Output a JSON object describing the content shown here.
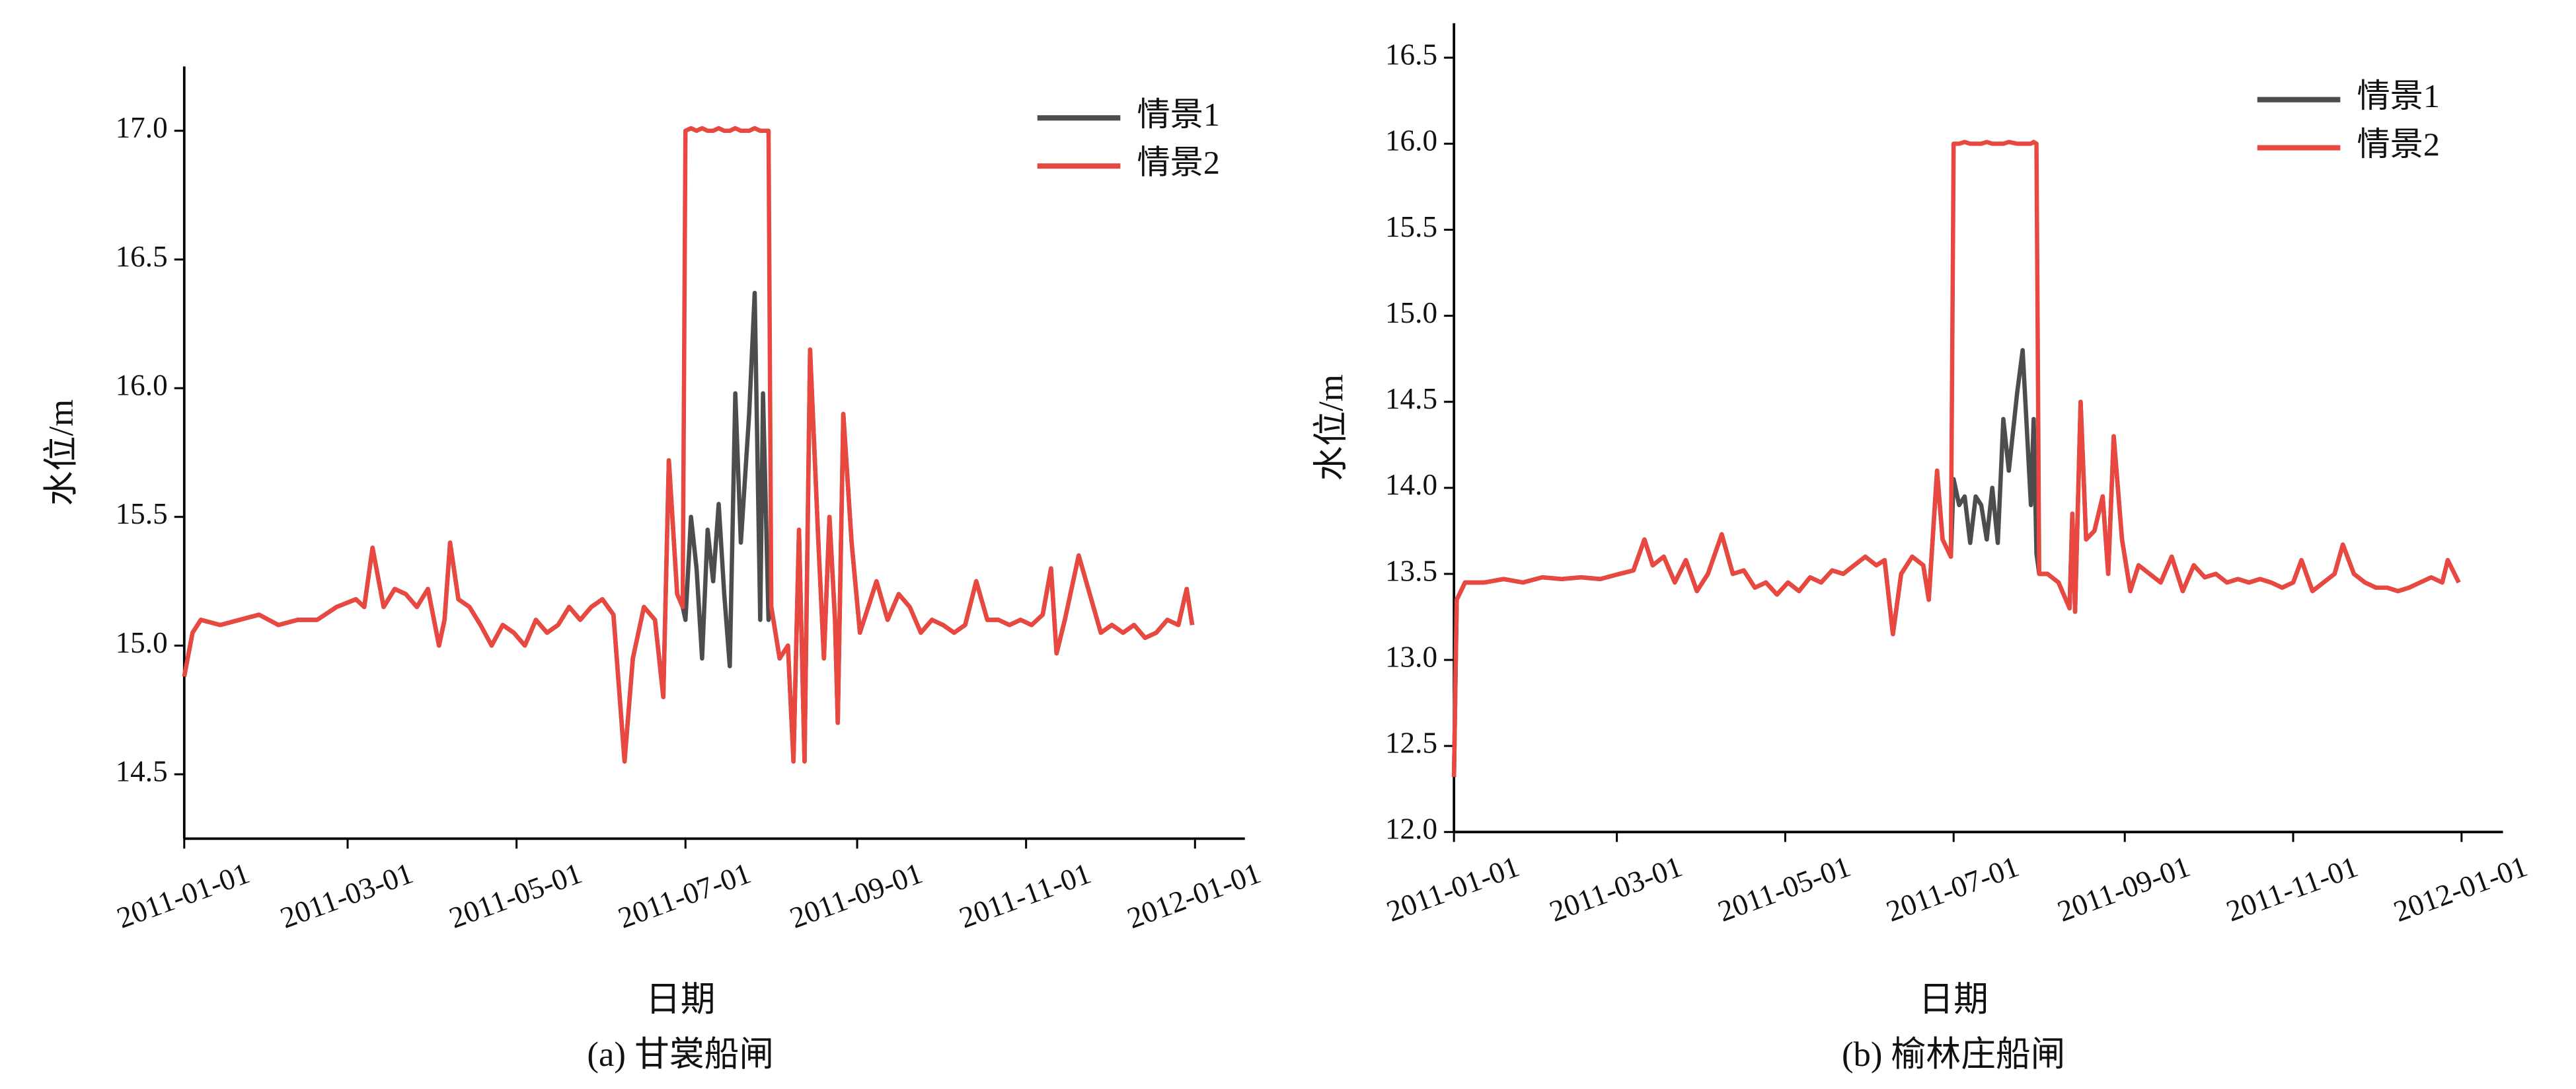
{
  "chart_data": [
    {
      "type": "line",
      "title": "(a) 甘裳船闸",
      "x_label": "日期",
      "y_label": "水位/m",
      "legend": "upper right",
      "xlim": [
        "2011-01-01",
        "2012-01-19"
      ],
      "xticks": [
        "2011-01-01",
        "2011-03-01",
        "2011-05-01",
        "2011-07-01",
        "2011-09-01",
        "2011-11-01",
        "2012-01-01"
      ],
      "ylim": [
        14.25,
        17.25
      ],
      "yticks": [
        14.5,
        {
          "value": 15,
          "label": "15.0"
        },
        15.5,
        {
          "value": 16,
          "label": "16.0"
        },
        16.5,
        {
          "value": 17,
          "label": "17.0"
        }
      ],
      "x": [
        "2011-01-01",
        "2011-01-04",
        "2011-01-07",
        "2011-01-14",
        "2011-01-21",
        "2011-01-28",
        "2011-02-04",
        "2011-02-11",
        "2011-02-18",
        "2011-02-25",
        "2011-03-04",
        "2011-03-07",
        "2011-03-10",
        "2011-03-14",
        "2011-03-18",
        "2011-03-22",
        "2011-03-26",
        "2011-03-30",
        "2011-04-03",
        "2011-04-05",
        "2011-04-07",
        "2011-04-10",
        "2011-04-14",
        "2011-04-18",
        "2011-04-22",
        "2011-04-26",
        "2011-04-30",
        "2011-05-04",
        "2011-05-08",
        "2011-05-12",
        "2011-05-16",
        "2011-05-20",
        "2011-05-24",
        "2011-05-28",
        "2011-06-01",
        "2011-06-05",
        "2011-06-09",
        "2011-06-12",
        "2011-06-16",
        "2011-06-20",
        "2011-06-23",
        "2011-06-25",
        "2011-06-28",
        "2011-06-30",
        "2011-07-01",
        "2011-07-03",
        "2011-07-05",
        "2011-07-07",
        "2011-07-09",
        "2011-07-11",
        "2011-07-13",
        "2011-07-15",
        "2011-07-17",
        "2011-07-19",
        "2011-07-21",
        "2011-07-24",
        "2011-07-26",
        "2011-07-28",
        "2011-07-29",
        "2011-07-31",
        "2011-08-01",
        "2011-08-04",
        "2011-08-07",
        "2011-08-09",
        "2011-08-11",
        "2011-08-13",
        "2011-08-15",
        "2011-08-18",
        "2011-08-20",
        "2011-08-22",
        "2011-08-24",
        "2011-08-25",
        "2011-08-27",
        "2011-08-30",
        "2011-09-02",
        "2011-09-05",
        "2011-09-08",
        "2011-09-12",
        "2011-09-16",
        "2011-09-20",
        "2011-09-24",
        "2011-09-28",
        "2011-10-02",
        "2011-10-06",
        "2011-10-10",
        "2011-10-14",
        "2011-10-18",
        "2011-10-22",
        "2011-10-26",
        "2011-10-30",
        "2011-11-03",
        "2011-11-07",
        "2011-11-10",
        "2011-11-12",
        "2011-11-15",
        "2011-11-20",
        "2011-11-24",
        "2011-11-28",
        "2011-12-02",
        "2011-12-06",
        "2011-12-10",
        "2011-12-14",
        "2011-12-18",
        "2011-12-22",
        "2011-12-26",
        "2011-12-29",
        "2011-12-31"
      ],
      "series": [
        {
          "name": "情景1",
          "color": "#4d4d4d",
          "values": [
            14.88,
            15.05,
            15.1,
            15.08,
            15.1,
            15.12,
            15.08,
            15.1,
            15.1,
            15.15,
            15.18,
            15.15,
            15.38,
            15.15,
            15.22,
            15.2,
            15.15,
            15.22,
            15,
            15.1,
            15.4,
            15.18,
            15.15,
            15.08,
            15,
            15.08,
            15.05,
            15,
            15.1,
            15.05,
            15.08,
            15.15,
            15.1,
            15.15,
            15.18,
            15.12,
            14.55,
            14.95,
            15.15,
            15.1,
            14.8,
            15.72,
            15.2,
            15.15,
            15.1,
            15.5,
            15.3,
            14.95,
            15.45,
            15.25,
            15.55,
            15.2,
            14.92,
            15.98,
            15.4,
            15.9,
            16.37,
            15.1,
            15.98,
            15.1,
            15.15,
            14.95,
            15,
            14.55,
            15.45,
            14.55,
            16.15,
            15.4,
            14.95,
            15.5,
            15.1,
            14.7,
            15.9,
            15.4,
            15.05,
            15.15,
            15.25,
            15.1,
            15.2,
            15.15,
            15.05,
            15.1,
            15.08,
            15.05,
            15.08,
            15.25,
            15.1,
            15.1,
            15.08,
            15.1,
            15.08,
            15.12,
            15.3,
            14.97,
            15.1,
            15.35,
            15.2,
            15.05,
            15.08,
            15.05,
            15.08,
            15.03,
            15.05,
            15.1,
            15.08,
            15.22,
            15.08
          ]
        },
        {
          "name": "情景2",
          "color": "#e8483f",
          "values": [
            14.88,
            15.05,
            15.1,
            15.08,
            15.1,
            15.12,
            15.08,
            15.1,
            15.1,
            15.15,
            15.18,
            15.15,
            15.38,
            15.15,
            15.22,
            15.2,
            15.15,
            15.22,
            15,
            15.1,
            15.4,
            15.18,
            15.15,
            15.08,
            15,
            15.08,
            15.05,
            15,
            15.1,
            15.05,
            15.08,
            15.15,
            15.1,
            15.15,
            15.18,
            15.12,
            14.55,
            14.95,
            15.15,
            15.1,
            14.8,
            15.72,
            15.2,
            15.15,
            17,
            17.01,
            17,
            17.01,
            17,
            17,
            17.01,
            17,
            17,
            17.01,
            17,
            17,
            17.01,
            17,
            17,
            17,
            15.15,
            14.95,
            15,
            14.55,
            15.45,
            14.55,
            16.15,
            15.4,
            14.95,
            15.5,
            15.1,
            14.7,
            15.9,
            15.4,
            15.05,
            15.15,
            15.25,
            15.1,
            15.2,
            15.15,
            15.05,
            15.1,
            15.08,
            15.05,
            15.08,
            15.25,
            15.1,
            15.1,
            15.08,
            15.1,
            15.08,
            15.12,
            15.3,
            14.97,
            15.1,
            15.35,
            15.2,
            15.05,
            15.08,
            15.05,
            15.08,
            15.03,
            15.05,
            15.1,
            15.08,
            15.22,
            15.08
          ]
        }
      ]
    },
    {
      "type": "line",
      "title": "(b) 榆林庄船闸",
      "x_label": "日期",
      "y_label": "水位/m",
      "legend": "upper right",
      "xlim": [
        "2011-01-01",
        "2012-01-16"
      ],
      "xticks": [
        "2011-01-01",
        "2011-03-01",
        "2011-05-01",
        "2011-07-01",
        "2011-09-01",
        "2011-11-01",
        "2012-01-01"
      ],
      "ylim": [
        12,
        16.7
      ],
      "yticks": [
        {
          "value": 12,
          "label": "12.0"
        },
        12.5,
        {
          "value": 13,
          "label": "13.0"
        },
        13.5,
        {
          "value": 14,
          "label": "14.0"
        },
        14.5,
        {
          "value": 15,
          "label": "15.0"
        },
        15.5,
        {
          "value": 16,
          "label": "16.0"
        },
        16.5
      ],
      "x": [
        "2011-01-01",
        "2011-01-02",
        "2011-01-05",
        "2011-01-12",
        "2011-01-19",
        "2011-01-26",
        "2011-02-02",
        "2011-02-09",
        "2011-02-16",
        "2011-02-23",
        "2011-03-02",
        "2011-03-07",
        "2011-03-11",
        "2011-03-14",
        "2011-03-18",
        "2011-03-22",
        "2011-03-26",
        "2011-03-30",
        "2011-04-03",
        "2011-04-08",
        "2011-04-12",
        "2011-04-16",
        "2011-04-20",
        "2011-04-24",
        "2011-04-28",
        "2011-05-02",
        "2011-05-06",
        "2011-05-10",
        "2011-05-14",
        "2011-05-18",
        "2011-05-22",
        "2011-05-26",
        "2011-05-30",
        "2011-06-03",
        "2011-06-06",
        "2011-06-09",
        "2011-06-12",
        "2011-06-16",
        "2011-06-20",
        "2011-06-22",
        "2011-06-25",
        "2011-06-27",
        "2011-06-30",
        "2011-07-01",
        "2011-07-03",
        "2011-07-05",
        "2011-07-07",
        "2011-07-09",
        "2011-07-11",
        "2011-07-13",
        "2011-07-15",
        "2011-07-17",
        "2011-07-19",
        "2011-07-21",
        "2011-07-24",
        "2011-07-26",
        "2011-07-27",
        "2011-07-29",
        "2011-07-30",
        "2011-07-31",
        "2011-08-01",
        "2011-08-04",
        "2011-08-08",
        "2011-08-12",
        "2011-08-13",
        "2011-08-14",
        "2011-08-16",
        "2011-08-18",
        "2011-08-21",
        "2011-08-24",
        "2011-08-26",
        "2011-08-28",
        "2011-08-31",
        "2011-09-03",
        "2011-09-06",
        "2011-09-10",
        "2011-09-14",
        "2011-09-18",
        "2011-09-22",
        "2011-09-26",
        "2011-09-30",
        "2011-10-04",
        "2011-10-08",
        "2011-10-12",
        "2011-10-16",
        "2011-10-20",
        "2011-10-24",
        "2011-10-28",
        "2011-11-01",
        "2011-11-04",
        "2011-11-08",
        "2011-11-12",
        "2011-11-16",
        "2011-11-19",
        "2011-11-23",
        "2011-11-27",
        "2011-12-01",
        "2011-12-05",
        "2011-12-09",
        "2011-12-13",
        "2011-12-17",
        "2011-12-21",
        "2011-12-25",
        "2011-12-27",
        "2011-12-31"
      ],
      "series": [
        {
          "name": "情景1",
          "color": "#4d4d4d",
          "values": [
            12.32,
            13.35,
            13.45,
            13.45,
            13.47,
            13.45,
            13.48,
            13.47,
            13.48,
            13.47,
            13.5,
            13.52,
            13.7,
            13.55,
            13.6,
            13.45,
            13.58,
            13.4,
            13.5,
            13.73,
            13.5,
            13.52,
            13.42,
            13.45,
            13.38,
            13.45,
            13.4,
            13.48,
            13.45,
            13.52,
            13.5,
            13.55,
            13.6,
            13.55,
            13.58,
            13.15,
            13.5,
            13.6,
            13.55,
            13.35,
            14.1,
            13.7,
            13.6,
            14.05,
            13.9,
            13.95,
            13.68,
            13.95,
            13.9,
            13.7,
            14,
            13.68,
            14.4,
            14.1,
            14.55,
            14.8,
            14.5,
            13.9,
            14.4,
            13.62,
            13.5,
            13.5,
            13.45,
            13.3,
            13.85,
            13.28,
            14.5,
            13.7,
            13.75,
            13.95,
            13.5,
            14.3,
            13.7,
            13.4,
            13.55,
            13.5,
            13.45,
            13.6,
            13.4,
            13.55,
            13.48,
            13.5,
            13.45,
            13.47,
            13.45,
            13.47,
            13.45,
            13.42,
            13.45,
            13.58,
            13.4,
            13.45,
            13.5,
            13.67,
            13.5,
            13.45,
            13.42,
            13.42,
            13.4,
            13.42,
            13.45,
            13.48,
            13.45,
            13.58,
            13.45
          ]
        },
        {
          "name": "情景2",
          "color": "#e8483f",
          "values": [
            12.32,
            13.35,
            13.45,
            13.45,
            13.47,
            13.45,
            13.48,
            13.47,
            13.48,
            13.47,
            13.5,
            13.52,
            13.7,
            13.55,
            13.6,
            13.45,
            13.58,
            13.4,
            13.5,
            13.73,
            13.5,
            13.52,
            13.42,
            13.45,
            13.38,
            13.45,
            13.4,
            13.48,
            13.45,
            13.52,
            13.5,
            13.55,
            13.6,
            13.55,
            13.58,
            13.15,
            13.5,
            13.6,
            13.55,
            13.35,
            14.1,
            13.7,
            13.6,
            16,
            16,
            16.01,
            16,
            16,
            16,
            16.01,
            16,
            16,
            16,
            16.01,
            16,
            16,
            16,
            16,
            16.01,
            16,
            13.5,
            13.5,
            13.45,
            13.3,
            13.85,
            13.28,
            14.5,
            13.7,
            13.75,
            13.95,
            13.5,
            14.3,
            13.7,
            13.4,
            13.55,
            13.5,
            13.45,
            13.6,
            13.4,
            13.55,
            13.48,
            13.5,
            13.45,
            13.47,
            13.45,
            13.47,
            13.45,
            13.42,
            13.45,
            13.58,
            13.4,
            13.45,
            13.5,
            13.67,
            13.5,
            13.45,
            13.42,
            13.42,
            13.4,
            13.42,
            13.45,
            13.48,
            13.45,
            13.58,
            13.45
          ]
        }
      ]
    }
  ]
}
